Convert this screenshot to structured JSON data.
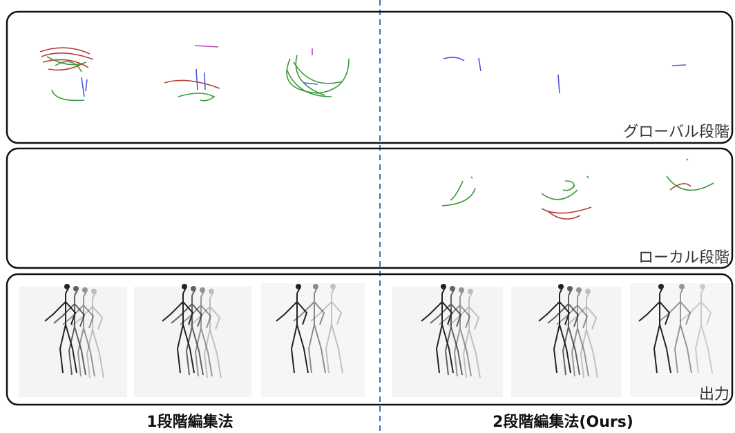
{
  "stages": [
    "グローバル段階",
    "ローカル段階",
    "出力"
  ],
  "methods": [
    "1段階編集法",
    "2段階編集法(Ours)"
  ]
}
